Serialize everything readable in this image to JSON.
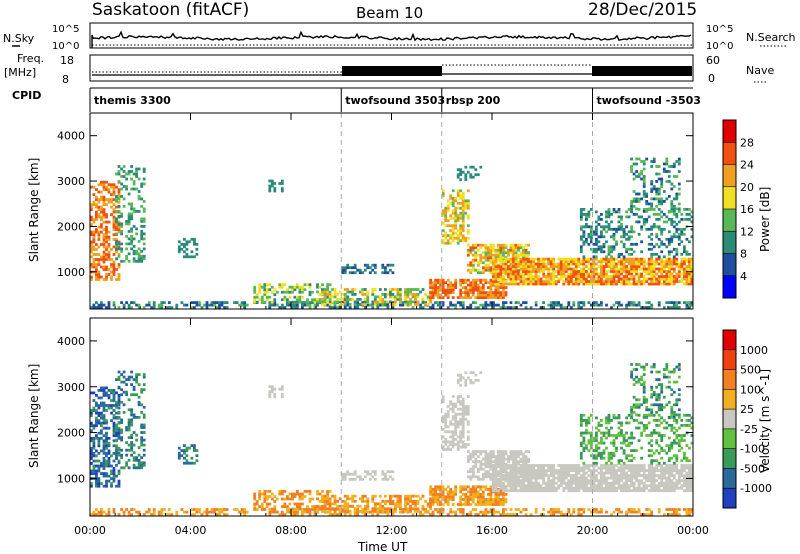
{
  "header": {
    "station": "Saskatoon (fitACF)",
    "beam": "Beam 10",
    "date": "28/Dec/2015"
  },
  "nsky_panel": {
    "left_label": "N.Sky",
    "right_label": "N.Search",
    "left_ticks": [
      "10^5",
      "10^0"
    ],
    "right_ticks": [
      "10^5",
      "10^0"
    ]
  },
  "freq_panel": {
    "left_label_1": "Freq.",
    "left_label_2": "[MHz]",
    "right_label": "Nave",
    "left_ticks": [
      "18",
      "8"
    ],
    "right_ticks": [
      "60",
      "0"
    ]
  },
  "cpid": {
    "label": "CPID",
    "segments": [
      {
        "name": "themis 3300",
        "start_hour": 0
      },
      {
        "name": "twofsound 3503",
        "start_hour": 10
      },
      {
        "name": "rbsp 200",
        "start_hour": 14
      },
      {
        "name": "twofsound -3503",
        "start_hour": 20
      }
    ]
  },
  "chart_data": [
    {
      "type": "heatmap",
      "panel": "power",
      "ylabel": "Slant Range [km]",
      "ylim": [
        180,
        4500
      ],
      "yticks": [
        "1000",
        "2000",
        "3000",
        "4000"
      ],
      "xlim_hours": [
        0,
        24
      ],
      "colorbar": {
        "label": "Power [dB]",
        "ticks": [
          "4",
          "8",
          "12",
          "16",
          "20",
          "24",
          "28"
        ],
        "colors": [
          "#0000ff",
          "#1e4f9e",
          "#2c8a79",
          "#58b858",
          "#f0e020",
          "#f0a020",
          "#f05010",
          "#e00000"
        ]
      }
    },
    {
      "type": "heatmap",
      "panel": "velocity",
      "ylabel": "Slant Range [km]",
      "ylim": [
        180,
        4500
      ],
      "yticks": [
        "1000",
        "2000",
        "3000",
        "4000"
      ],
      "xlim_hours": [
        0,
        24
      ],
      "xlabel": "Time UT",
      "xticks": [
        "00:00",
        "04:00",
        "08:00",
        "12:00",
        "16:00",
        "20:00",
        "00:00"
      ],
      "colorbar": {
        "label": "Velocity [m s^-1]",
        "ticks": [
          "1000",
          "500",
          "100",
          "25",
          "-25",
          "-100",
          "-500",
          "-1000"
        ],
        "colors": [
          "#2040c0",
          "#2a6a9a",
          "#3a9a5a",
          "#60c040",
          "#c8c8c0",
          "#f0b020",
          "#f08020",
          "#f04010",
          "#e00000"
        ]
      }
    }
  ]
}
